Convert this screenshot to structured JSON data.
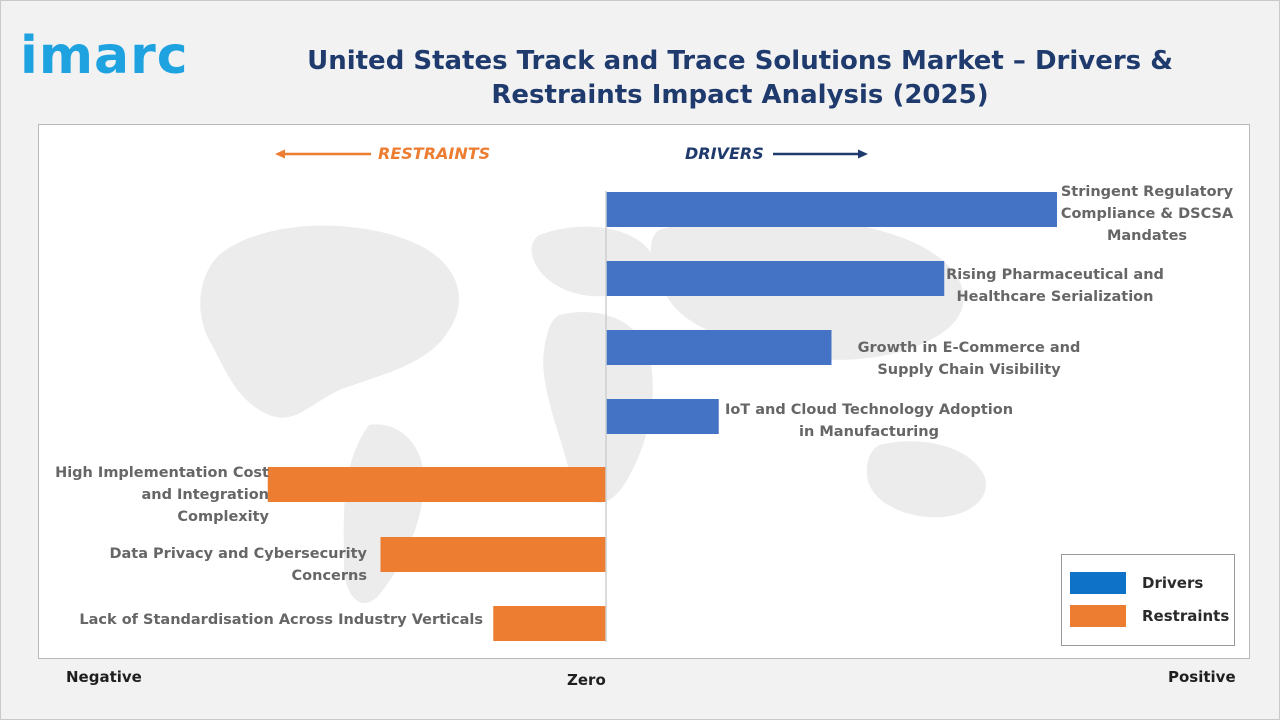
{
  "brand": {
    "logo_text": "imarc"
  },
  "chart_data": {
    "type": "bar",
    "orientation": "horizontal",
    "title": "United States Track and Trace Solutions Market – Drivers & Restraints Impact Analysis (2025)",
    "direction_labels": {
      "left": "RESTRAINTS",
      "right": "DRIVERS"
    },
    "axis_labels": {
      "negative": "Negative",
      "zero": "Zero",
      "positive": "Positive"
    },
    "xlim": [
      -3,
      4
    ],
    "legend_position": "bottom-right",
    "series": [
      {
        "name": "Drivers",
        "color": "#4472c4"
      },
      {
        "name": "Restraints",
        "color": "#ed7d31"
      }
    ],
    "bars": [
      {
        "label": "Stringent Regulatory Compliance & DSCSA Mandates",
        "value": 4.0,
        "series": "Drivers"
      },
      {
        "label": "Rising Pharmaceutical and Healthcare Serialization",
        "value": 3.0,
        "series": "Drivers"
      },
      {
        "label": "Growth in E-Commerce and Supply Chain Visibility",
        "value": 2.0,
        "series": "Drivers"
      },
      {
        "label": "IoT and Cloud Technology Adoption in Manufacturing",
        "value": 1.0,
        "series": "Drivers"
      },
      {
        "label": "High Implementation Cost and Integration Complexity",
        "value": -3.0,
        "series": "Restraints"
      },
      {
        "label": "Data Privacy and Cybersecurity Concerns",
        "value": -2.0,
        "series": "Restraints"
      },
      {
        "label": "Lack of Standardisation Across Industry Verticals",
        "value": -1.0,
        "series": "Restraints"
      }
    ]
  }
}
